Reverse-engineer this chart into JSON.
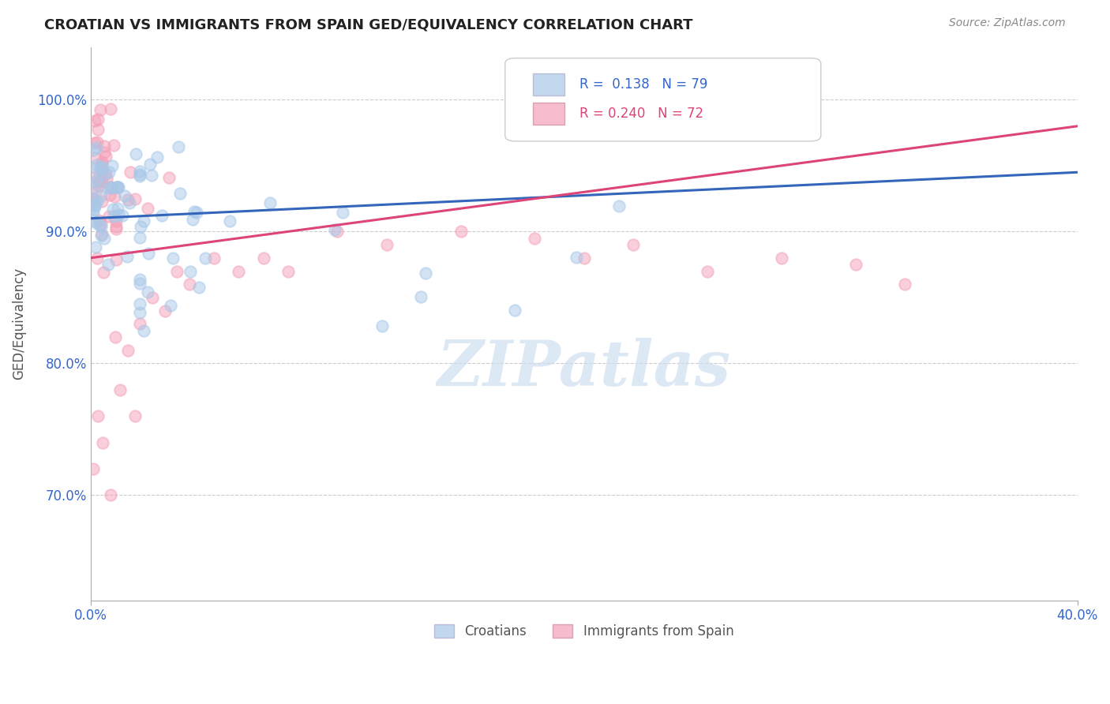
{
  "title": "CROATIAN VS IMMIGRANTS FROM SPAIN GED/EQUIVALENCY CORRELATION CHART",
  "source": "Source: ZipAtlas.com",
  "ylabel": "GED/Equivalency",
  "xlim": [
    0.0,
    0.4
  ],
  "ylim": [
    0.62,
    1.04
  ],
  "xticks": [
    0.0,
    0.4
  ],
  "xticklabels": [
    "0.0%",
    "40.0%"
  ],
  "yticks": [
    0.7,
    0.8,
    0.9,
    1.0
  ],
  "yticklabels": [
    "70.0%",
    "80.0%",
    "90.0%",
    "100.0%"
  ],
  "blue_R": 0.138,
  "blue_N": 79,
  "pink_R": 0.24,
  "pink_N": 72,
  "blue_color": "#a8c8e8",
  "pink_color": "#f4a0b8",
  "blue_line_color": "#3366bb",
  "pink_line_color": "#dd4477",
  "legend_label_blue": "Croatians",
  "legend_label_pink": "Immigrants from Spain",
  "watermark": "ZIPatlas",
  "blue_line_x0": 0.0,
  "blue_line_y0": 0.91,
  "blue_line_x1": 0.4,
  "blue_line_y1": 0.945,
  "pink_line_x0": 0.0,
  "pink_line_y0": 0.88,
  "pink_line_x1": 0.4,
  "pink_line_y1": 0.98
}
